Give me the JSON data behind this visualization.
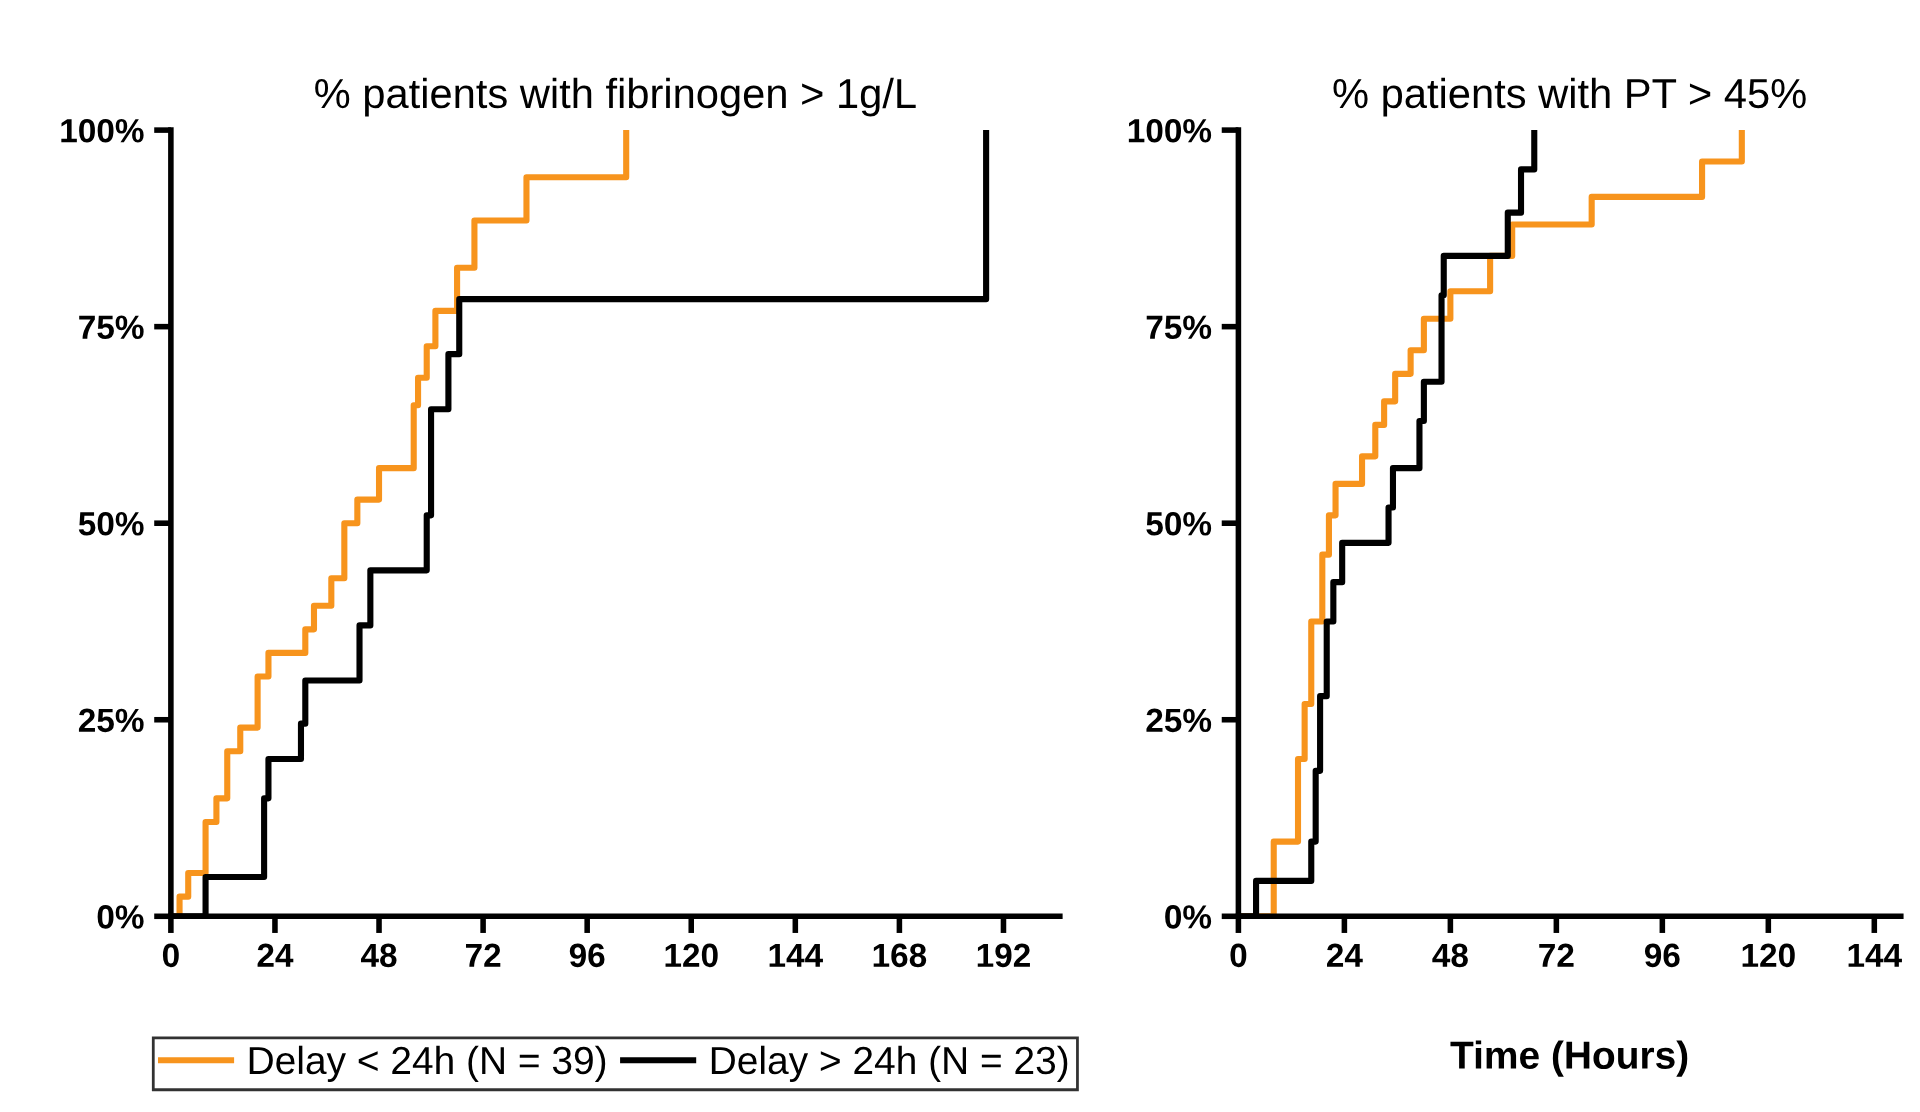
{
  "chart_data": [
    {
      "type": "step",
      "title": "% patients with fibrinogen > 1g/L",
      "xlim": [
        0,
        205
      ],
      "xticks": [
        0,
        24,
        48,
        72,
        96,
        120,
        144,
        168,
        192
      ],
      "ylim": [
        0,
        100
      ],
      "yticks": [
        {
          "value": 0,
          "label": "0%"
        },
        {
          "value": 25,
          "label": "25%"
        },
        {
          "value": 50,
          "label": "50%"
        },
        {
          "value": 75,
          "label": "75%"
        },
        {
          "value": 100,
          "label": "100%"
        }
      ],
      "grid": false,
      "legend": "bottom",
      "series": [
        {
          "name": "Delay < 24h (N = 39)",
          "color": "#f7941d",
          "x": [
            0,
            2,
            4,
            8,
            10.5,
            13,
            16,
            20,
            22.5,
            31,
            33,
            37,
            40,
            43,
            48,
            56,
            57,
            59,
            61,
            66,
            70,
            82,
            105
          ],
          "values": [
            0,
            2.5,
            5.5,
            12,
            15,
            21,
            24,
            30.5,
            33.5,
            36.5,
            39.5,
            43,
            50,
            53,
            57,
            65,
            68.5,
            72.5,
            77,
            82.5,
            88.5,
            94,
            100
          ]
        },
        {
          "name": "Delay > 24h (N = 23)",
          "color": "#000000",
          "x": [
            0,
            8,
            21.5,
            22.5,
            30,
            31,
            43.5,
            46,
            59,
            60,
            64,
            66.5,
            188
          ],
          "values": [
            0,
            5,
            15,
            20,
            24.5,
            30,
            37,
            44,
            51,
            64.5,
            71.5,
            78.5,
            100
          ]
        }
      ]
    },
    {
      "type": "step",
      "title": "% patients with PT > 45%",
      "xlabel": "Time (Hours)",
      "xlim": [
        0,
        150
      ],
      "xticks": [
        0,
        24,
        48,
        72,
        96,
        120,
        144
      ],
      "ylim": [
        0,
        100
      ],
      "yticks": [
        {
          "value": 0,
          "label": "0%"
        },
        {
          "value": 25,
          "label": "25%"
        },
        {
          "value": 50,
          "label": "50%"
        },
        {
          "value": 75,
          "label": "75%"
        },
        {
          "value": 100,
          "label": "100%"
        }
      ],
      "grid": false,
      "series": [
        {
          "color": "#f7941d",
          "x": [
            0,
            8,
            13.5,
            15,
            16.5,
            19,
            20.5,
            22,
            28,
            31,
            33,
            35.5,
            39,
            42,
            48,
            57,
            62,
            80,
            105,
            114
          ],
          "values": [
            0,
            9.5,
            20,
            27,
            37.5,
            46,
            51,
            55,
            58.5,
            62.5,
            65.5,
            69,
            72,
            76,
            79.5,
            84,
            88,
            91.5,
            96,
            100
          ]
        },
        {
          "color": "#000000",
          "x": [
            0,
            4,
            16.5,
            17.5,
            18.5,
            20,
            21.5,
            23.5,
            34,
            35,
            41,
            42,
            46,
            46.5,
            61,
            64,
            67
          ],
          "values": [
            0,
            4.5,
            9.5,
            18.5,
            28,
            37.5,
            42.5,
            47.5,
            52,
            57,
            63,
            68,
            79,
            84,
            89.5,
            95,
            100
          ]
        }
      ]
    }
  ]
}
